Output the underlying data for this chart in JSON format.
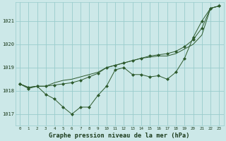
{
  "title": "Graphe pression niveau de la mer (hPa)",
  "background_color": "#cce8e8",
  "grid_color": "#99cccc",
  "line_color": "#2d5a2d",
  "x_labels": [
    "0",
    "1",
    "2",
    "3",
    "4",
    "5",
    "6",
    "7",
    "8",
    "9",
    "10",
    "11",
    "12",
    "13",
    "14",
    "15",
    "16",
    "17",
    "18",
    "19",
    "20",
    "21",
    "22",
    "23"
  ],
  "ylim": [
    1016.5,
    1021.8
  ],
  "yticks": [
    1017,
    1018,
    1019,
    1020,
    1021
  ],
  "series1": [
    1018.3,
    1018.1,
    1018.2,
    1017.85,
    1017.65,
    1017.3,
    1017.0,
    1017.3,
    1017.3,
    1017.8,
    1018.2,
    1018.9,
    1019.0,
    1018.7,
    1018.7,
    1018.6,
    1018.65,
    1018.5,
    1018.8,
    1019.4,
    1020.3,
    1021.0,
    1021.55,
    1021.65
  ],
  "series2": [
    1018.3,
    1018.15,
    1018.2,
    1018.2,
    1018.25,
    1018.3,
    1018.35,
    1018.45,
    1018.6,
    1018.75,
    1019.0,
    1019.1,
    1019.2,
    1019.3,
    1019.4,
    1019.5,
    1019.55,
    1019.6,
    1019.7,
    1019.9,
    1020.2,
    1020.7,
    1021.55,
    1021.65
  ],
  "series3": [
    1018.3,
    1018.15,
    1018.2,
    1018.2,
    1018.35,
    1018.45,
    1018.5,
    1018.6,
    1018.7,
    1018.8,
    1019.0,
    1019.1,
    1019.2,
    1019.3,
    1019.4,
    1019.45,
    1019.5,
    1019.5,
    1019.6,
    1019.8,
    1020.0,
    1020.4,
    1021.55,
    1021.65
  ]
}
